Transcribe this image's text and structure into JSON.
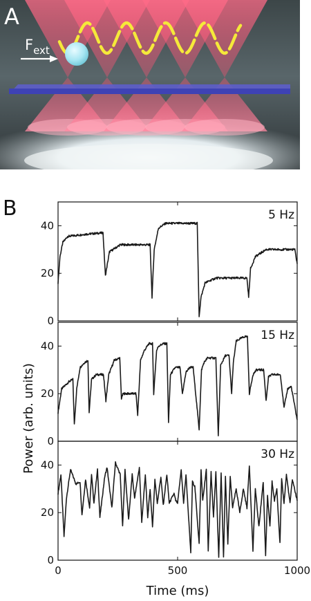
{
  "figure": {
    "panel_a_label": "A",
    "panel_b_label": "B",
    "force_label_main": "F",
    "force_label_sub": "ext"
  },
  "chart_data": [
    {
      "type": "line",
      "title": "5 Hz",
      "xlabel": "Time (ms)",
      "ylabel": "Power (arb. units)",
      "xlim": [
        0,
        1000
      ],
      "ylim": [
        0,
        50
      ],
      "yticks": [
        "0",
        "20",
        "40"
      ],
      "xticks": [
        "0",
        "500",
        "1000"
      ],
      "series": [
        {
          "x": [
            0,
            8,
            20,
            40,
            80,
            120,
            188,
            198,
            215,
            260,
            320,
            385,
            393,
            402,
            420,
            450,
            500,
            582,
            590,
            598,
            615,
            660,
            720,
            790,
            797,
            805,
            825,
            870,
            930,
            990,
            1000
          ],
          "y": [
            16,
            27,
            33,
            35.5,
            36,
            36.5,
            37,
            19,
            29,
            32,
            32,
            32,
            10,
            30,
            39,
            41,
            41,
            41,
            2,
            10,
            16,
            18,
            18,
            18,
            10,
            22,
            27,
            30,
            30,
            30,
            24
          ]
        }
      ]
    },
    {
      "type": "line",
      "title": "15 Hz",
      "xlabel": "Time (ms)",
      "ylabel": "Power (arb. units)",
      "xlim": [
        0,
        1000
      ],
      "ylim": [
        0,
        50
      ],
      "yticks": [
        "0",
        "20",
        "40"
      ],
      "xticks": [
        "0",
        "500",
        "1000"
      ],
      "series": [
        {
          "x": [
            0,
            15,
            45,
            62,
            68,
            78,
            92,
            110,
            125,
            130,
            140,
            160,
            190,
            200,
            212,
            235,
            258,
            265,
            272,
            300,
            326,
            333,
            345,
            360,
            380,
            395,
            400,
            412,
            420,
            440,
            455,
            462,
            470,
            490,
            510,
            520,
            535,
            550,
            565,
            590,
            600,
            610,
            625,
            640,
            660,
            670,
            680,
            700,
            715,
            726,
            733,
            745,
            760,
            780,
            792,
            800,
            815,
            830,
            860,
            870,
            880,
            895,
            930,
            945,
            960,
            975,
            1000
          ],
          "y": [
            12,
            22,
            25,
            26,
            7,
            22,
            31,
            33,
            34,
            12,
            26,
            28,
            28,
            17,
            28,
            34,
            35,
            18,
            20,
            20,
            20,
            11,
            34,
            38,
            41,
            41,
            20,
            38,
            40,
            41,
            41,
            8,
            28,
            31,
            31,
            20,
            29,
            31,
            31,
            5,
            30,
            33,
            35,
            35,
            35,
            2,
            32,
            36,
            36,
            20,
            33,
            42,
            43,
            44,
            44,
            20,
            28,
            30,
            30,
            17,
            27,
            28,
            28,
            14,
            22,
            23,
            9
          ]
        }
      ]
    },
    {
      "type": "line",
      "title": "30 Hz",
      "xlabel": "Time (ms)",
      "ylabel": "Power (arb. units)",
      "xlim": [
        0,
        1000
      ],
      "ylim": [
        0,
        50
      ],
      "yticks": [
        "0",
        "20",
        "40"
      ],
      "xticks": [
        "0",
        "500",
        "1000"
      ],
      "series": [
        {
          "x": [
            0,
            12,
            25,
            35,
            52,
            60,
            75,
            92,
            100,
            115,
            132,
            140,
            150,
            165,
            175,
            195,
            205,
            212,
            225,
            240,
            248,
            260,
            270,
            280,
            295,
            310,
            320,
            340,
            350,
            365,
            375,
            385,
            395,
            405,
            415,
            430,
            440,
            455,
            465,
            485,
            492,
            500,
            515,
            525,
            535,
            555,
            562,
            572,
            590,
            598,
            605,
            620,
            628,
            640,
            650,
            660,
            672,
            682,
            692,
            700,
            710,
            720,
            730,
            745,
            760,
            775,
            790,
            800,
            815,
            825,
            840,
            858,
            868,
            876,
            886,
            895,
            905,
            915,
            928,
            935,
            945,
            955,
            970,
            980,
            1000
          ],
          "y": [
            28,
            36,
            10,
            26,
            38,
            36,
            32,
            33,
            19,
            34,
            22,
            36,
            24,
            38,
            18,
            35,
            39,
            33,
            22,
            41,
            39,
            36,
            14,
            38,
            17,
            36,
            26,
            39,
            16,
            36,
            18,
            30,
            14,
            34,
            24,
            35,
            23,
            36,
            24,
            28,
            25,
            24,
            38,
            24,
            36,
            3,
            33,
            31,
            7,
            38,
            25,
            38,
            4,
            37,
            18,
            37,
            1,
            37,
            1,
            35,
            7,
            35,
            22,
            30,
            20,
            30,
            22,
            40,
            4,
            30,
            14,
            33,
            2,
            27,
            14,
            33,
            25,
            30,
            7,
            34,
            24,
            36,
            24,
            34,
            25
          ]
        }
      ]
    }
  ]
}
